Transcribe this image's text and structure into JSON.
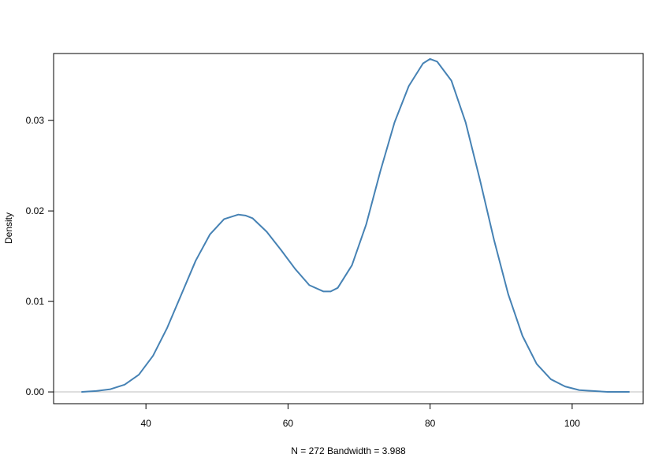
{
  "chart_data": {
    "type": "line",
    "title": "",
    "xlabel": "N = 272   Bandwidth = 3.988",
    "ylabel": "Density",
    "xlim": [
      27.0,
      110.0
    ],
    "ylim": [
      -0.0013,
      0.0374
    ],
    "x_ticks": [
      40,
      60,
      80,
      100
    ],
    "x_tick_labels": [
      "40",
      "60",
      "80",
      "100"
    ],
    "y_ticks": [
      0.0,
      0.01,
      0.02,
      0.03
    ],
    "y_tick_labels": [
      "0.00",
      "0.01",
      "0.02",
      "0.03"
    ],
    "baseline": 0.0,
    "grid": false,
    "colors": {
      "line": "#4682b4",
      "baseline": "#bebebe",
      "frame": "#000000"
    },
    "series": [
      {
        "x": [
          31,
          33,
          35,
          37,
          39,
          41,
          43,
          45,
          47,
          49,
          51,
          53,
          54,
          55,
          57,
          59,
          61,
          63,
          65,
          66,
          67,
          69,
          71,
          73,
          75,
          77,
          79,
          80,
          81,
          83,
          85,
          87,
          89,
          91,
          93,
          95,
          97,
          99,
          101,
          103,
          105,
          108
        ],
        "y": [
          0.0,
          0.0001,
          0.0003,
          0.0008,
          0.0019,
          0.004,
          0.0071,
          0.0108,
          0.0145,
          0.0174,
          0.0191,
          0.0196,
          0.0195,
          0.0192,
          0.0177,
          0.0157,
          0.0136,
          0.0118,
          0.0111,
          0.0111,
          0.0115,
          0.014,
          0.0185,
          0.0244,
          0.0298,
          0.0338,
          0.0363,
          0.0368,
          0.0365,
          0.0344,
          0.0298,
          0.0235,
          0.0168,
          0.0108,
          0.0062,
          0.0031,
          0.0014,
          0.0006,
          0.0002,
          0.0001,
          0.0,
          0.0
        ]
      }
    ]
  }
}
